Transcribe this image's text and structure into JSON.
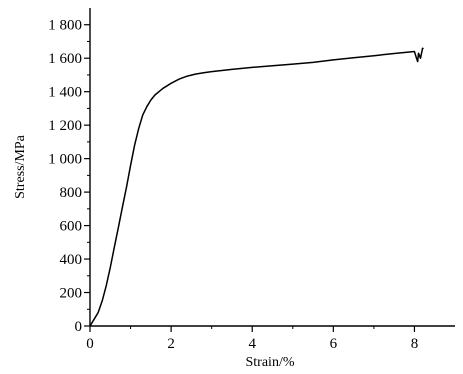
{
  "chart_data": {
    "type": "line",
    "title": "",
    "xlabel": "Strain/%",
    "ylabel": "Stress/MPa",
    "xlim": [
      0,
      9
    ],
    "ylim": [
      0,
      1900
    ],
    "x_ticks": [
      0,
      2,
      4,
      6,
      8
    ],
    "x_tick_labels": [
      "0",
      "2",
      "4",
      "6",
      "8"
    ],
    "y_ticks": [
      0,
      200,
      400,
      600,
      800,
      1000,
      1200,
      1400,
      1600,
      1800
    ],
    "y_tick_labels": [
      "0",
      "200",
      "400",
      "600",
      "800",
      "1 000",
      "1 200",
      "1 400",
      "1 600",
      "1 800"
    ],
    "grid": false,
    "legend": "none",
    "series": [
      {
        "color": "#000000",
        "x": [
          0,
          0.1,
          0.2,
          0.3,
          0.4,
          0.5,
          0.6,
          0.7,
          0.8,
          0.9,
          1.0,
          1.1,
          1.2,
          1.3,
          1.4,
          1.5,
          1.6,
          1.7,
          1.8,
          1.9,
          2.0,
          2.2,
          2.4,
          2.6,
          2.8,
          3.0,
          3.5,
          4.0,
          4.5,
          5.0,
          5.5,
          6.0,
          6.5,
          7.0,
          7.5,
          8.0,
          8.05,
          8.08,
          8.1,
          8.15,
          8.2,
          8.22
        ],
        "y": [
          0,
          40,
          80,
          150,
          240,
          350,
          470,
          590,
          710,
          830,
          960,
          1080,
          1180,
          1260,
          1310,
          1350,
          1380,
          1400,
          1420,
          1435,
          1450,
          1475,
          1493,
          1505,
          1513,
          1520,
          1533,
          1545,
          1555,
          1565,
          1575,
          1590,
          1603,
          1615,
          1628,
          1640,
          1600,
          1580,
          1630,
          1600,
          1660,
          1655
        ]
      }
    ]
  }
}
